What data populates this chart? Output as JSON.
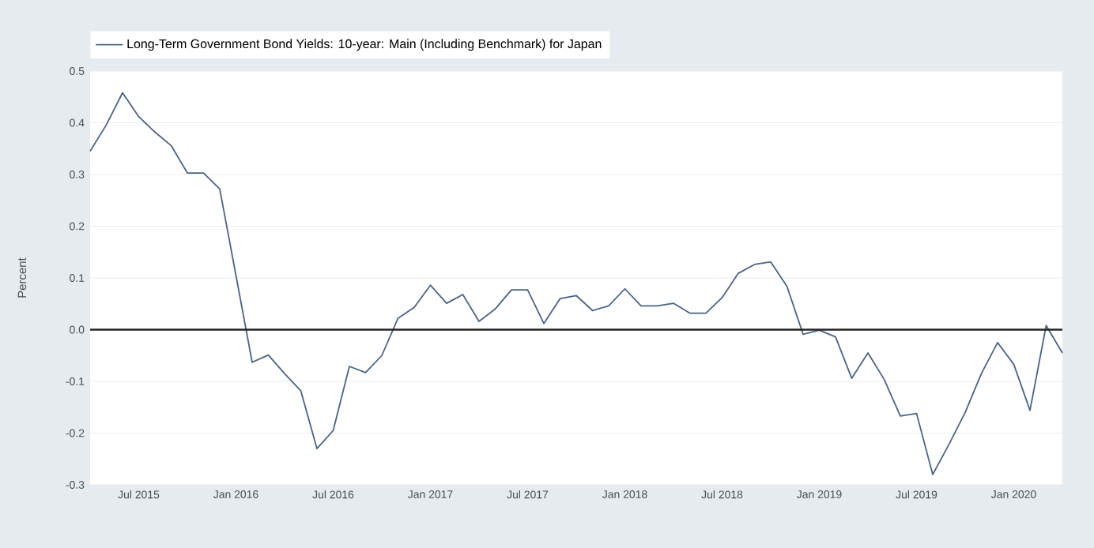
{
  "chart_data": {
    "type": "line",
    "ylabel": "Percent",
    "legend": "top left",
    "grid": "y",
    "marker": "none",
    "line_style": "solid",
    "x": [
      "2015-04",
      "2015-05",
      "2015-06",
      "2015-07",
      "2015-08",
      "2015-09",
      "2015-10",
      "2015-11",
      "2015-12",
      "2016-01",
      "2016-02",
      "2016-03",
      "2016-04",
      "2016-05",
      "2016-06",
      "2016-07",
      "2016-08",
      "2016-09",
      "2016-10",
      "2016-11",
      "2016-12",
      "2017-01",
      "2017-02",
      "2017-03",
      "2017-04",
      "2017-05",
      "2017-06",
      "2017-07",
      "2017-08",
      "2017-09",
      "2017-10",
      "2017-11",
      "2017-12",
      "2018-01",
      "2018-02",
      "2018-03",
      "2018-04",
      "2018-05",
      "2018-06",
      "2018-07",
      "2018-08",
      "2018-09",
      "2018-10",
      "2018-11",
      "2018-12",
      "2019-01",
      "2019-02",
      "2019-03",
      "2019-04",
      "2019-05",
      "2019-06",
      "2019-07",
      "2019-08",
      "2019-09",
      "2019-10",
      "2019-11",
      "2019-12",
      "2020-01",
      "2020-02",
      "2020-03",
      "2020-04"
    ],
    "series": [
      {
        "name": "Long-Term Government Bond Yields: 10-year: Main (Including Benchmark) for Japan",
        "color": "#4b6383",
        "values": [
          0.345,
          0.396,
          0.458,
          0.412,
          0.382,
          0.356,
          0.303,
          0.303,
          0.272,
          0.105,
          -0.063,
          -0.049,
          -0.085,
          -0.118,
          -0.23,
          -0.195,
          -0.071,
          -0.083,
          -0.05,
          0.022,
          0.043,
          0.086,
          0.051,
          0.068,
          0.016,
          0.04,
          0.077,
          0.077,
          0.012,
          0.06,
          0.066,
          0.037,
          0.046,
          0.079,
          0.046,
          0.046,
          0.051,
          0.032,
          0.032,
          0.062,
          0.109,
          0.126,
          0.131,
          0.084,
          -0.009,
          -0.001,
          -0.014,
          -0.094,
          -0.045,
          -0.096,
          -0.167,
          -0.162,
          -0.28,
          -0.222,
          -0.16,
          -0.085,
          -0.025,
          -0.067,
          -0.156,
          0.008,
          -0.045
        ]
      }
    ],
    "xlim": [
      "2015-04",
      "2020-04"
    ],
    "xticks": [
      {
        "value": "2015-07",
        "label": "Jul 2015"
      },
      {
        "value": "2016-01",
        "label": "Jan 2016"
      },
      {
        "value": "2016-07",
        "label": "Jul 2016"
      },
      {
        "value": "2017-01",
        "label": "Jan 2017"
      },
      {
        "value": "2017-07",
        "label": "Jul 2017"
      },
      {
        "value": "2018-01",
        "label": "Jan 2018"
      },
      {
        "value": "2018-07",
        "label": "Jul 2018"
      },
      {
        "value": "2019-01",
        "label": "Jan 2019"
      },
      {
        "value": "2019-07",
        "label": "Jul 2019"
      },
      {
        "value": "2020-01",
        "label": "Jan 2020"
      }
    ],
    "ylim": [
      -0.3,
      0.5
    ],
    "yticks": [
      -0.3,
      -0.2,
      -0.1,
      {
        "value": 0,
        "label": "0.0"
      },
      0.1,
      0.2,
      0.3,
      0.4,
      0.5
    ],
    "ref_lines": [
      {
        "axis": "y",
        "value": 0,
        "color": "#222222"
      }
    ]
  }
}
